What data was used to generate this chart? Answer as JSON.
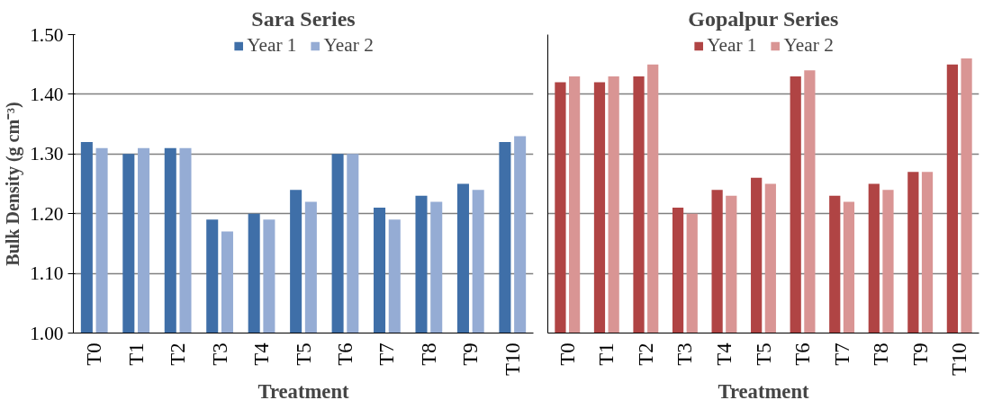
{
  "chart_data": [
    {
      "type": "bar",
      "title": "Sara Series",
      "xlabel": "Treatment",
      "ylabel": "Bulk Density (g cm⁻³)",
      "categories": [
        "T0",
        "T1",
        "T2",
        "T3",
        "T4",
        "T5",
        "T6",
        "T7",
        "T8",
        "T9",
        "T10"
      ],
      "series": [
        {
          "name": "Year 1",
          "color": "#3f6fa8",
          "values": [
            1.32,
            1.3,
            1.31,
            1.19,
            1.2,
            1.24,
            1.3,
            1.21,
            1.23,
            1.25,
            1.32
          ]
        },
        {
          "name": "Year 2",
          "color": "#95acd4",
          "values": [
            1.31,
            1.31,
            1.31,
            1.17,
            1.19,
            1.22,
            1.3,
            1.19,
            1.22,
            1.24,
            1.33
          ]
        }
      ],
      "ylim": [
        1.0,
        1.5
      ],
      "yticks": [
        {
          "value": 1.0,
          "label": "1.00"
        },
        {
          "value": 1.1,
          "label": "1.10"
        },
        {
          "value": 1.2,
          "label": "1.20"
        },
        {
          "value": 1.3,
          "label": "1.30"
        },
        {
          "value": 1.4,
          "label": "1.40"
        },
        {
          "value": 1.5,
          "label": "1.50"
        }
      ],
      "grid": "y",
      "legend": "top"
    },
    {
      "type": "bar",
      "title": "Gopalpur Series",
      "xlabel": "Treatment",
      "categories": [
        "T0",
        "T1",
        "T2",
        "T3",
        "T4",
        "T5",
        "T6",
        "T7",
        "T8",
        "T9",
        "T10"
      ],
      "series": [
        {
          "name": "Year 1",
          "color": "#b04444",
          "values": [
            1.42,
            1.42,
            1.43,
            1.21,
            1.24,
            1.26,
            1.43,
            1.23,
            1.25,
            1.27,
            1.45
          ]
        },
        {
          "name": "Year 2",
          "color": "#d99594",
          "values": [
            1.43,
            1.43,
            1.45,
            1.2,
            1.23,
            1.25,
            1.44,
            1.22,
            1.24,
            1.27,
            1.46
          ]
        }
      ],
      "ylim": [
        1.0,
        1.5
      ],
      "yticks": [
        1.0,
        1.1,
        1.2,
        1.3,
        1.4,
        1.5
      ],
      "grid": "y",
      "legend": "top",
      "tick_labels": "x"
    }
  ]
}
